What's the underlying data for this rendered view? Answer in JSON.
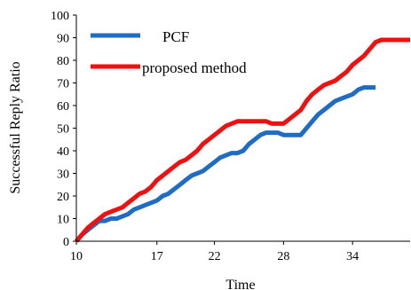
{
  "chart_data": {
    "type": "line",
    "title": "",
    "xlabel": "Time",
    "ylabel": "Successful Reply Ratio",
    "xlim": [
      10,
      39
    ],
    "ylim": [
      0,
      100
    ],
    "xticks": [
      10,
      17,
      22,
      28,
      34
    ],
    "yticks": [
      0,
      10,
      20,
      30,
      40,
      50,
      60,
      70,
      80,
      90,
      100
    ],
    "grid": false,
    "legend_position": "top-left",
    "series": [
      {
        "name": "PCF",
        "color": "#1f6cc4",
        "x": [
          10,
          10.5,
          11,
          11.5,
          12,
          12.5,
          13,
          13.5,
          14,
          14.5,
          15,
          15.5,
          16,
          16.5,
          17,
          17.5,
          18,
          18.5,
          19,
          19.5,
          20,
          20.5,
          21,
          21.5,
          22,
          22.5,
          23,
          23.5,
          24,
          24.5,
          25,
          25.5,
          26,
          26.5,
          27,
          27.5,
          28,
          28.5,
          29,
          29.5,
          30,
          30.5,
          31,
          31.5,
          32,
          32.5,
          33,
          33.5,
          34,
          34.5,
          35,
          35.5,
          36
        ],
        "values": [
          0,
          3,
          5,
          7,
          9,
          9,
          10,
          10,
          11,
          12,
          14,
          15,
          16,
          17,
          18,
          20,
          21,
          23,
          25,
          27,
          29,
          30,
          31,
          33,
          35,
          37,
          38,
          39,
          39,
          40,
          43,
          45,
          47,
          48,
          48,
          48,
          47,
          47,
          47,
          47,
          50,
          53,
          56,
          58,
          60,
          62,
          63,
          64,
          65,
          67,
          68,
          68,
          68
        ]
      },
      {
        "name": "proposed method",
        "color": "#ee1111",
        "x": [
          10,
          10.5,
          11,
          11.5,
          12,
          12.5,
          13,
          13.5,
          14,
          14.5,
          15,
          15.5,
          16,
          16.5,
          17,
          17.5,
          18,
          18.5,
          19,
          19.5,
          20,
          20.5,
          21,
          21.5,
          22,
          22.5,
          23,
          23.5,
          24,
          24.5,
          25,
          25.5,
          26,
          26.5,
          27,
          27.5,
          28,
          28.5,
          29,
          29.5,
          30,
          30.5,
          31,
          31.5,
          32,
          32.5,
          33,
          33.5,
          34,
          34.5,
          35,
          35.5,
          36,
          36.5,
          37,
          37.5,
          38,
          38.5,
          39
        ],
        "values": [
          0,
          3,
          6,
          8,
          10,
          12,
          13,
          14,
          15,
          17,
          19,
          21,
          22,
          24,
          27,
          29,
          31,
          33,
          35,
          36,
          38,
          40,
          43,
          45,
          47,
          49,
          51,
          52,
          53,
          53,
          53,
          53,
          53,
          53,
          52,
          52,
          52,
          54,
          56,
          58,
          62,
          65,
          67,
          69,
          70,
          71,
          73,
          75,
          78,
          80,
          82,
          85,
          88,
          89,
          89,
          89,
          89,
          89,
          89
        ]
      }
    ]
  }
}
